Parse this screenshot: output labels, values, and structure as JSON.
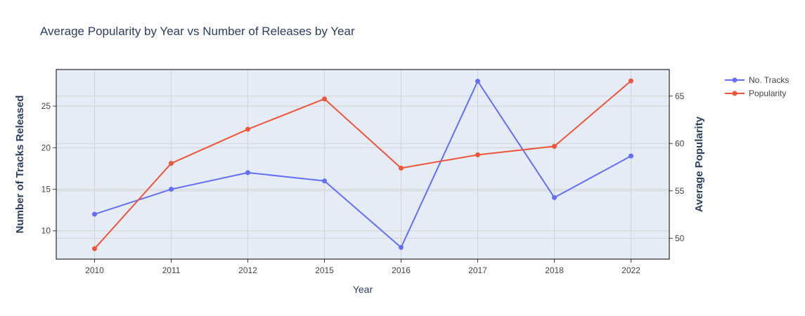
{
  "chart_data": {
    "type": "line",
    "title": "Average Popularity by Year vs Number of Releases by Year",
    "xlabel": "Year",
    "ylabel": "Number of Tracks Released",
    "y2label": "Average Popularity",
    "categories": [
      "2010",
      "2011",
      "2012",
      "2015",
      "2016",
      "2017",
      "2018",
      "2022"
    ],
    "series": [
      {
        "name": "No. Tracks",
        "axis": "y",
        "color": "#636efa",
        "values": [
          12,
          15,
          17,
          16,
          8,
          28,
          14,
          19
        ]
      },
      {
        "name": "Popularity",
        "axis": "y2",
        "color": "#ef553b",
        "values": [
          48.9,
          57.9,
          61.5,
          64.7,
          57.4,
          58.8,
          59.7,
          66.6
        ]
      }
    ],
    "yaxis": {
      "range": [
        6.6,
        29.4
      ],
      "ticks": [
        10,
        15,
        20,
        25
      ]
    },
    "y2axis": {
      "range": [
        47.8,
        67.8
      ],
      "ticks": [
        50,
        55,
        60,
        65
      ]
    },
    "plot_bgcolor": "#e5ecf6",
    "grid": true,
    "legend_position": "top-right"
  }
}
